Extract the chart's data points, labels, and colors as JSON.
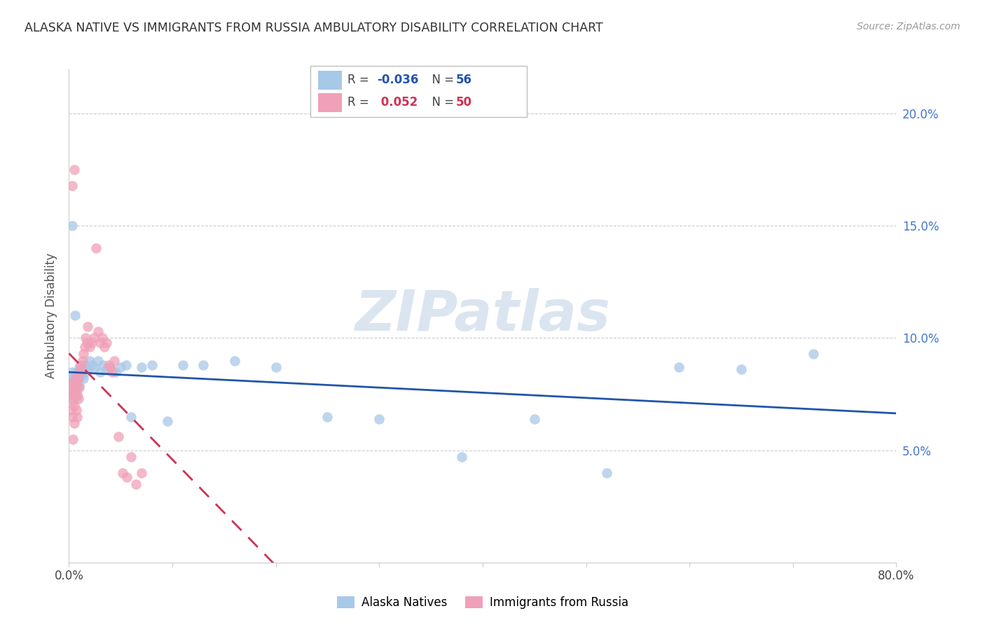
{
  "title": "ALASKA NATIVE VS IMMIGRANTS FROM RUSSIA AMBULATORY DISABILITY CORRELATION CHART",
  "source": "Source: ZipAtlas.com",
  "ylabel": "Ambulatory Disability",
  "xlim": [
    0.0,
    0.8
  ],
  "ylim": [
    0.0,
    0.22
  ],
  "color_blue": "#a8c8e8",
  "color_pink": "#f0a0b8",
  "color_blue_line": "#2255aa",
  "color_pink_line": "#cc3355",
  "watermark": "ZIPatlas",
  "alaska_N": 56,
  "alaska_R": -0.036,
  "russia_N": 50,
  "russia_R": 0.052,
  "alaska_x": [
    0.001,
    0.002,
    0.003,
    0.003,
    0.004,
    0.004,
    0.004,
    0.005,
    0.005,
    0.006,
    0.006,
    0.007,
    0.007,
    0.008,
    0.008,
    0.008,
    0.009,
    0.01,
    0.01,
    0.01,
    0.011,
    0.012,
    0.013,
    0.014,
    0.015,
    0.016,
    0.018,
    0.02,
    0.022,
    0.025,
    0.028,
    0.03,
    0.033,
    0.036,
    0.04,
    0.045,
    0.05,
    0.055,
    0.06,
    0.07,
    0.08,
    0.095,
    0.11,
    0.13,
    0.16,
    0.2,
    0.25,
    0.3,
    0.38,
    0.45,
    0.52,
    0.59,
    0.65,
    0.72,
    0.003,
    0.006
  ],
  "alaska_y": [
    0.083,
    0.08,
    0.085,
    0.076,
    0.079,
    0.082,
    0.073,
    0.081,
    0.076,
    0.083,
    0.079,
    0.085,
    0.078,
    0.082,
    0.079,
    0.074,
    0.085,
    0.083,
    0.079,
    0.087,
    0.085,
    0.083,
    0.086,
    0.082,
    0.088,
    0.085,
    0.086,
    0.09,
    0.088,
    0.087,
    0.09,
    0.085,
    0.088,
    0.086,
    0.087,
    0.085,
    0.087,
    0.088,
    0.065,
    0.087,
    0.088,
    0.063,
    0.088,
    0.088,
    0.09,
    0.087,
    0.065,
    0.064,
    0.047,
    0.064,
    0.04,
    0.087,
    0.086,
    0.093,
    0.15,
    0.11
  ],
  "russia_x": [
    0.001,
    0.002,
    0.002,
    0.003,
    0.003,
    0.004,
    0.004,
    0.005,
    0.005,
    0.005,
    0.006,
    0.006,
    0.007,
    0.007,
    0.008,
    0.008,
    0.008,
    0.009,
    0.009,
    0.01,
    0.01,
    0.011,
    0.012,
    0.013,
    0.014,
    0.015,
    0.016,
    0.017,
    0.018,
    0.02,
    0.022,
    0.024,
    0.026,
    0.028,
    0.03,
    0.032,
    0.034,
    0.036,
    0.038,
    0.04,
    0.042,
    0.044,
    0.048,
    0.052,
    0.056,
    0.06,
    0.065,
    0.07,
    0.003,
    0.005
  ],
  "russia_y": [
    0.08,
    0.076,
    0.068,
    0.075,
    0.065,
    0.072,
    0.055,
    0.079,
    0.07,
    0.062,
    0.082,
    0.075,
    0.079,
    0.068,
    0.082,
    0.075,
    0.065,
    0.082,
    0.073,
    0.085,
    0.078,
    0.088,
    0.086,
    0.09,
    0.093,
    0.096,
    0.1,
    0.098,
    0.105,
    0.096,
    0.098,
    0.1,
    0.14,
    0.103,
    0.098,
    0.1,
    0.096,
    0.098,
    0.088,
    0.087,
    0.085,
    0.09,
    0.056,
    0.04,
    0.038,
    0.047,
    0.035,
    0.04,
    0.168,
    0.175
  ]
}
